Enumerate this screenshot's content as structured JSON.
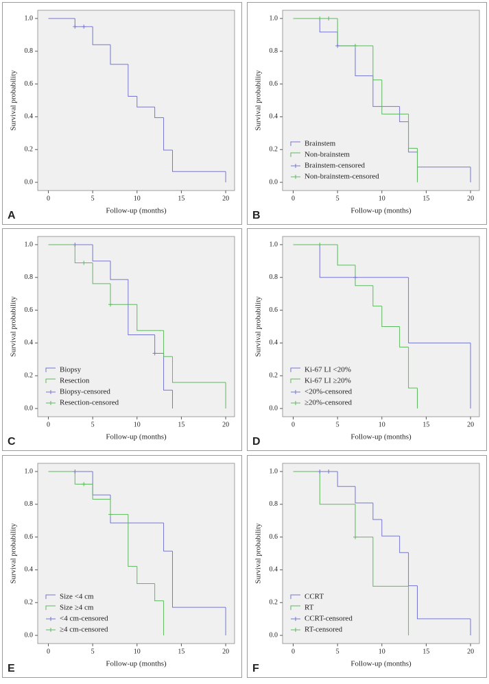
{
  "chart_data": [
    {
      "type": "step",
      "panel_label": "A",
      "xlabel": "Follow-up (months)",
      "ylabel": "Survival probability",
      "xlim": [
        -1.2,
        21
      ],
      "xticks": [
        0,
        5,
        10,
        15,
        20
      ],
      "ylim": [
        -0.05,
        1.05
      ],
      "yticks": [
        {
          "value": 0,
          "label": "0.0"
        },
        {
          "value": 0.2,
          "label": "0.2"
        },
        {
          "value": 0.4,
          "label": "0.4"
        },
        {
          "value": 0.6,
          "label": "0.6"
        },
        {
          "value": 0.8,
          "label": "0.8"
        },
        {
          "value": 1,
          "label": "1.0"
        }
      ],
      "series": [
        {
          "color": "#7474d0",
          "x": [
            0,
            3,
            5,
            7,
            9,
            10,
            12,
            13,
            14,
            20
          ],
          "values": [
            1,
            0.95,
            0.84,
            0.72,
            0.525,
            0.46,
            0.395,
            0.197,
            0.066,
            0
          ]
        },
        {
          "color": "#7474d0",
          "marker": "+",
          "x": [
            3,
            4
          ],
          "values": [
            0.95,
            0.95
          ]
        }
      ]
    },
    {
      "type": "step",
      "panel_label": "B",
      "xlabel": "Follow-up (months)",
      "ylabel": "Survival probability",
      "legend": "lower left",
      "xlim": [
        -1.2,
        21
      ],
      "xticks": [
        0,
        5,
        10,
        15,
        20
      ],
      "ylim": [
        -0.05,
        1.05
      ],
      "yticks": [
        {
          "value": 0,
          "label": "0.0"
        },
        {
          "value": 0.2,
          "label": "0.2"
        },
        {
          "value": 0.4,
          "label": "0.4"
        },
        {
          "value": 0.6,
          "label": "0.6"
        },
        {
          "value": 0.8,
          "label": "0.8"
        },
        {
          "value": 1,
          "label": "1.0"
        }
      ],
      "series": [
        {
          "name": "Brainstem",
          "color": "#7474d0",
          "x": [
            0,
            3,
            5,
            7,
            9,
            12,
            13,
            14,
            20
          ],
          "values": [
            1,
            0.917,
            0.833,
            0.65,
            0.463,
            0.37,
            0.185,
            0.093,
            0
          ]
        },
        {
          "name": "Non-brainstem",
          "color": "#5cb85c",
          "x": [
            0,
            5,
            9,
            10,
            13,
            14
          ],
          "values": [
            1,
            0.833,
            0.625,
            0.417,
            0.208,
            0
          ]
        },
        {
          "name": "Brainstem-censored",
          "color": "#7474d0",
          "marker": "+",
          "x": [
            5
          ],
          "values": [
            0.833
          ]
        },
        {
          "name": "Non-brainstem-censored",
          "color": "#5cb85c",
          "marker": "+",
          "x": [
            3,
            4,
            7
          ],
          "values": [
            1,
            1,
            0.833
          ]
        }
      ]
    },
    {
      "type": "step",
      "panel_label": "C",
      "xlabel": "Follow-up (months)",
      "ylabel": "Survival probability",
      "legend": "lower left",
      "xlim": [
        -1.2,
        21
      ],
      "xticks": [
        0,
        5,
        10,
        15,
        20
      ],
      "ylim": [
        -0.05,
        1.05
      ],
      "yticks": [
        {
          "value": 0,
          "label": "0.0"
        },
        {
          "value": 0.2,
          "label": "0.2"
        },
        {
          "value": 0.4,
          "label": "0.4"
        },
        {
          "value": 0.6,
          "label": "0.6"
        },
        {
          "value": 0.8,
          "label": "0.8"
        },
        {
          "value": 1,
          "label": "1.0"
        }
      ],
      "series": [
        {
          "name": "Biopsy",
          "color": "#7474d0",
          "x": [
            0,
            5,
            7,
            9,
            12,
            13,
            14
          ],
          "values": [
            1,
            0.9,
            0.787,
            0.45,
            0.337,
            0.112,
            0
          ]
        },
        {
          "name": "Resection",
          "color": "#5cb85c",
          "x": [
            0,
            3,
            5,
            7,
            10,
            13,
            14,
            20
          ],
          "values": [
            1,
            0.889,
            0.762,
            0.635,
            0.476,
            0.317,
            0.159,
            0
          ]
        },
        {
          "name": "Biopsy-censored",
          "color": "#7474d0",
          "marker": "+",
          "x": [
            3,
            12
          ],
          "values": [
            1,
            0.337
          ]
        },
        {
          "name": "Resection-censored",
          "color": "#5cb85c",
          "marker": "+",
          "x": [
            4,
            7
          ],
          "values": [
            0.889,
            0.635
          ]
        }
      ]
    },
    {
      "type": "step",
      "panel_label": "D",
      "xlabel": "Follow-up (months)",
      "ylabel": "Survival probability",
      "legend": "lower left",
      "xlim": [
        -1.2,
        21
      ],
      "xticks": [
        0,
        5,
        10,
        15,
        20
      ],
      "ylim": [
        -0.05,
        1.05
      ],
      "yticks": [
        {
          "value": 0,
          "label": "0.0"
        },
        {
          "value": 0.2,
          "label": "0.2"
        },
        {
          "value": 0.4,
          "label": "0.4"
        },
        {
          "value": 0.6,
          "label": "0.6"
        },
        {
          "value": 0.8,
          "label": "0.8"
        },
        {
          "value": 1,
          "label": "1.0"
        }
      ],
      "series": [
        {
          "name": "Ki-67 LI <20%",
          "color": "#7474d0",
          "x": [
            0,
            3,
            13,
            20
          ],
          "values": [
            1,
            0.8,
            0.4,
            0
          ]
        },
        {
          "name": "Ki-67 LI ≥20%",
          "color": "#5cb85c",
          "x": [
            0,
            5,
            7,
            9,
            10,
            12,
            13,
            14
          ],
          "values": [
            1,
            0.875,
            0.75,
            0.625,
            0.5,
            0.375,
            0.125,
            0
          ]
        },
        {
          "name": "<20%-censored",
          "color": "#7474d0",
          "marker": "+",
          "x": [
            7
          ],
          "values": [
            0.8
          ]
        },
        {
          "name": "≥20%-censored",
          "color": "#5cb85c",
          "marker": "+",
          "x": [
            3
          ],
          "values": [
            1
          ]
        }
      ]
    },
    {
      "type": "step",
      "panel_label": "E",
      "xlabel": "Follow-up (months)",
      "ylabel": "Survival probability",
      "legend": "lower left",
      "xlim": [
        -1.2,
        21
      ],
      "xticks": [
        0,
        5,
        10,
        15,
        20
      ],
      "ylim": [
        -0.05,
        1.05
      ],
      "yticks": [
        {
          "value": 0,
          "label": "0.0"
        },
        {
          "value": 0.2,
          "label": "0.2"
        },
        {
          "value": 0.4,
          "label": "0.4"
        },
        {
          "value": 0.6,
          "label": "0.6"
        },
        {
          "value": 0.8,
          "label": "0.8"
        },
        {
          "value": 1,
          "label": "1.0"
        }
      ],
      "series": [
        {
          "name": "Size <4 cm",
          "color": "#7474d0",
          "x": [
            0,
            5,
            7,
            13,
            14,
            20
          ],
          "values": [
            1,
            0.857,
            0.686,
            0.514,
            0.171,
            0
          ]
        },
        {
          "name": "Size ≥4 cm",
          "color": "#5cb85c",
          "x": [
            0,
            3,
            5,
            7,
            9,
            10,
            12,
            13
          ],
          "values": [
            1,
            0.923,
            0.831,
            0.738,
            0.421,
            0.316,
            0.211,
            0
          ]
        },
        {
          "name": "<4 cm-censored",
          "color": "#7474d0",
          "marker": "+",
          "x": [
            3
          ],
          "values": [
            1
          ]
        },
        {
          "name": "≥4 cm-censored",
          "color": "#5cb85c",
          "marker": "+",
          "x": [
            4,
            7
          ],
          "values": [
            0.923,
            0.738
          ]
        }
      ]
    },
    {
      "type": "step",
      "panel_label": "F",
      "xlabel": "Follow-up (months)",
      "ylabel": "Survival probability",
      "legend": "lower left",
      "xlim": [
        -1.2,
        21
      ],
      "xticks": [
        0,
        5,
        10,
        15,
        20
      ],
      "ylim": [
        -0.05,
        1.05
      ],
      "yticks": [
        {
          "value": 0,
          "label": "0.0"
        },
        {
          "value": 0.2,
          "label": "0.2"
        },
        {
          "value": 0.4,
          "label": "0.4"
        },
        {
          "value": 0.6,
          "label": "0.6"
        },
        {
          "value": 0.8,
          "label": "0.8"
        },
        {
          "value": 1,
          "label": "1.0"
        }
      ],
      "series": [
        {
          "name": "CCRT",
          "color": "#7474d0",
          "x": [
            0,
            5,
            7,
            9,
            10,
            12,
            13,
            14,
            20
          ],
          "values": [
            1,
            0.909,
            0.808,
            0.707,
            0.606,
            0.505,
            0.303,
            0.101,
            0
          ]
        },
        {
          "name": "RT",
          "color": "#5cb85c",
          "x": [
            0,
            3,
            7,
            9,
            13
          ],
          "values": [
            1,
            0.8,
            0.6,
            0.3,
            0
          ]
        },
        {
          "name": "CCRT-censored",
          "color": "#7474d0",
          "marker": "+",
          "x": [
            3,
            4
          ],
          "values": [
            1,
            1
          ]
        },
        {
          "name": "RT-censored",
          "color": "#5cb85c",
          "marker": "+",
          "x": [
            7
          ],
          "values": [
            0.6
          ]
        }
      ]
    }
  ]
}
